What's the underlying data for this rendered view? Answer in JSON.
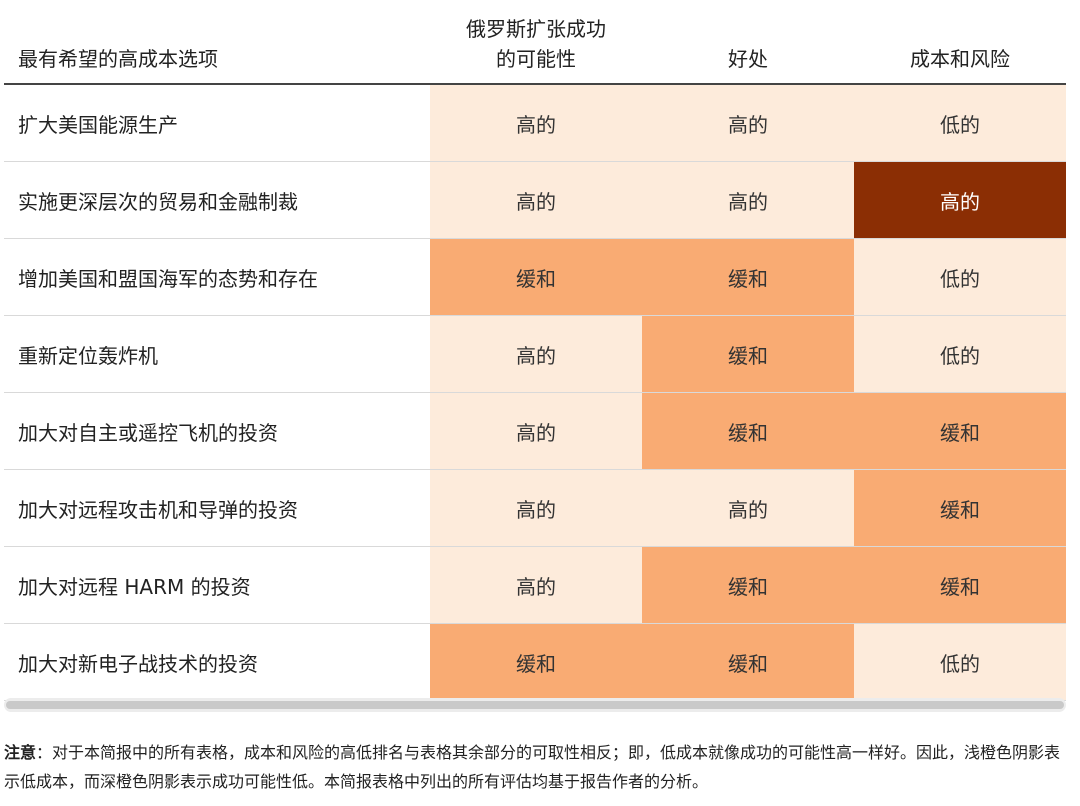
{
  "table": {
    "headers": {
      "option": "最有希望的高成本选项",
      "success_line1": "俄罗斯扩张成功",
      "success_line2": "的可能性",
      "benefit": "好处",
      "cost_risk": "成本和风险"
    },
    "rows": [
      {
        "label": "扩大美国能源生产",
        "success": "高的",
        "benefit": "高的",
        "cost": "低的"
      },
      {
        "label": "实施更深层次的贸易和金融制裁",
        "success": "高的",
        "benefit": "高的",
        "cost": "高的"
      },
      {
        "label": "增加美国和盟国海军的态势和存在",
        "success": "缓和",
        "benefit": "缓和",
        "cost": "低的"
      },
      {
        "label": "重新定位轰炸机",
        "success": "高的",
        "benefit": "缓和",
        "cost": "低的"
      },
      {
        "label": "加大对自主或遥控飞机的投资",
        "success": "高的",
        "benefit": "缓和",
        "cost": "缓和"
      },
      {
        "label": "加大对远程攻击机和导弹的投资",
        "success": "高的",
        "benefit": "高的",
        "cost": "缓和"
      },
      {
        "label": "加大对远程 HARM 的投资",
        "success": "高的",
        "benefit": "缓和",
        "cost": "缓和"
      },
      {
        "label": "加大对新电子战技术的投资",
        "success": "缓和",
        "benefit": "缓和",
        "cost": "低的"
      }
    ],
    "shading": {
      "rows": [
        [
          "low",
          "low",
          "low"
        ],
        [
          "low",
          "low",
          "high"
        ],
        [
          "mid",
          "mid",
          "low"
        ],
        [
          "low",
          "mid",
          "low"
        ],
        [
          "low",
          "mid",
          "mid"
        ],
        [
          "low",
          "low",
          "mid"
        ],
        [
          "low",
          "mid",
          "mid"
        ],
        [
          "mid",
          "mid",
          "low"
        ]
      ],
      "colors": {
        "low": "#fdebdb",
        "mid": "#f9ab73",
        "high": "#8b2e04"
      }
    }
  },
  "note": {
    "label": "注意",
    "text": "：对于本简报中的所有表格，成本和风险的高低排名与表格其余部分的可取性相反；即，低成本就像成功的可能性高一样好。因此，浅橙色阴影表示低成本，而深橙色阴影表示成功可能性低。本简报表格中列出的所有评估均基于报告作者的分析。"
  }
}
